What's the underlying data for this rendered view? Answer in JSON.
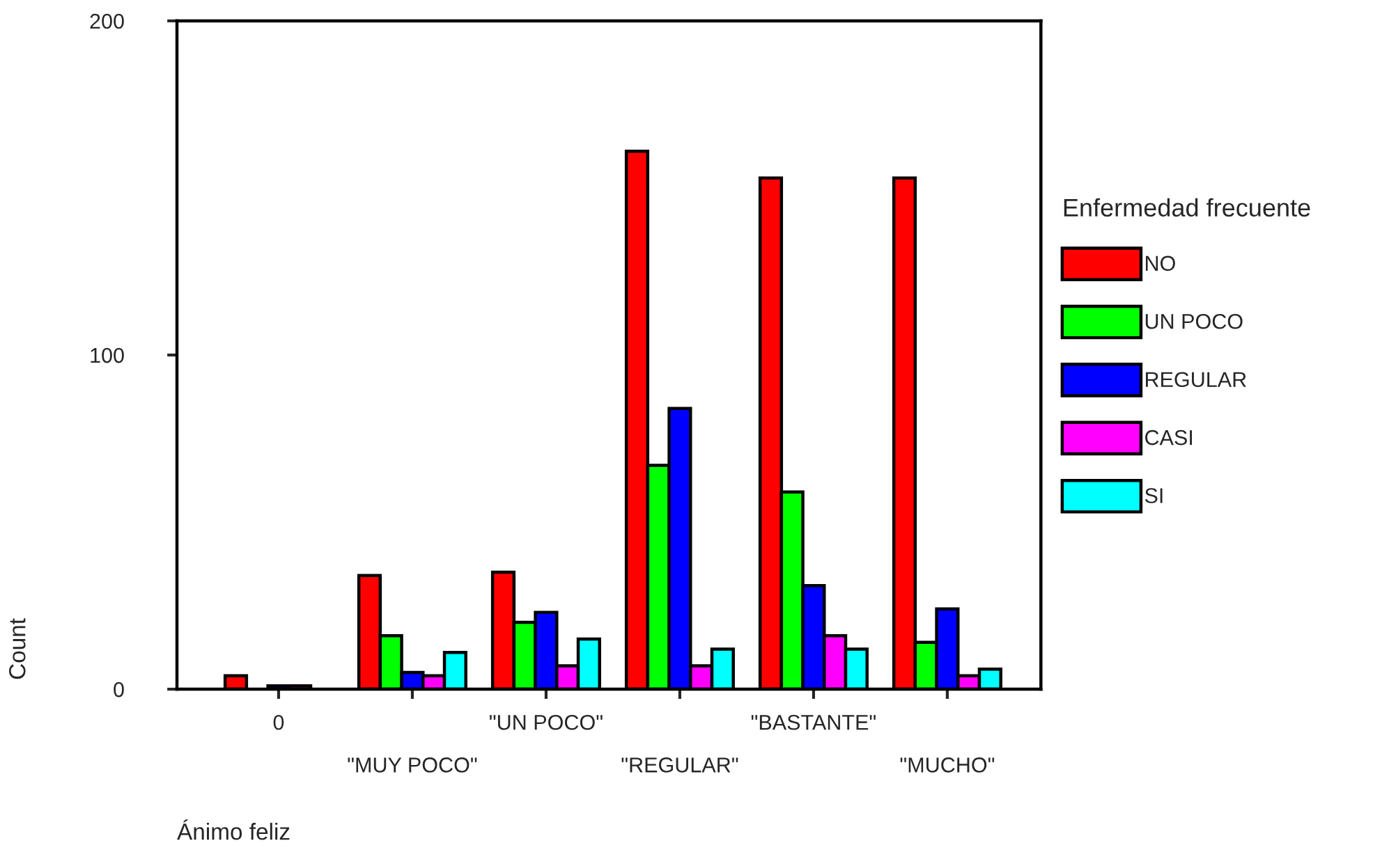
{
  "chart_data": {
    "type": "bar",
    "xlabel": "Ánimo feliz",
    "ylabel": "Count",
    "legend_title": "Enfermedad frecuente",
    "categories": [
      "0",
      "\"MUY POCO\"",
      "\"UN POCO\"",
      "\"REGULAR\"",
      "\"BASTANTE\"",
      "\"MUCHO\""
    ],
    "series": [
      {
        "name": "NO",
        "color": "#ff0000",
        "values": [
          4,
          34,
          35,
          161,
          153,
          153
        ]
      },
      {
        "name": "UN POCO",
        "color": "#00ff00",
        "values": [
          null,
          16,
          20,
          67,
          59,
          14
        ]
      },
      {
        "name": "REGULAR",
        "color": "#0000ff",
        "values": [
          1,
          5,
          23,
          84,
          31,
          24
        ]
      },
      {
        "name": "CASI",
        "color": "#ff00ff",
        "values": [
          1,
          4,
          7,
          7,
          16,
          4
        ]
      },
      {
        "name": "SI",
        "color": "#00ffff",
        "values": [
          null,
          11,
          15,
          12,
          12,
          6
        ]
      }
    ],
    "ylim": [
      0,
      200
    ],
    "yticks": [
      0,
      100,
      200
    ],
    "legend": "right",
    "grid": false
  }
}
